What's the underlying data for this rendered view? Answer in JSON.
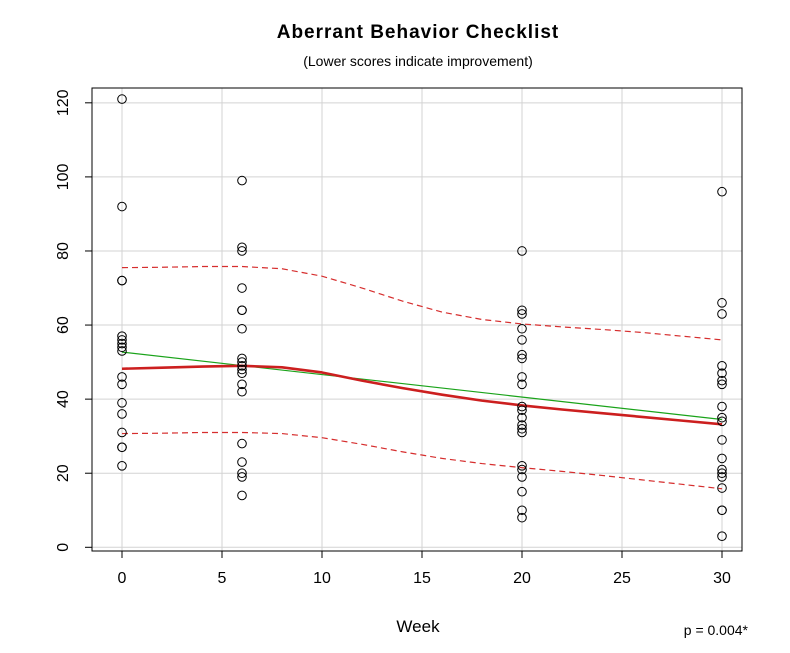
{
  "chart_data": {
    "type": "scatter",
    "title": "Aberrant Behavior Checklist",
    "subtitle": "(Lower scores indicate improvement)",
    "xlabel": "Week",
    "ylabel": "",
    "xlim": [
      -1.5,
      31
    ],
    "ylim": [
      -1,
      124
    ],
    "xticks": [
      0,
      5,
      10,
      15,
      20,
      25,
      30
    ],
    "yticks": [
      0,
      20,
      40,
      60,
      80,
      100,
      120
    ],
    "grid": true,
    "annotation": "p = 0.004*",
    "colors": {
      "points": "#000000",
      "smooth": "#cc1f1f",
      "linear": "#1aa31a",
      "band": "#d62e2e",
      "grid": "#d3d3d3",
      "axis": "#000000"
    },
    "series": [
      {
        "name": "Observed scores",
        "kind": "points",
        "points": [
          {
            "x": 0,
            "y": 121
          },
          {
            "x": 0,
            "y": 92
          },
          {
            "x": 0,
            "y": 72
          },
          {
            "x": 0,
            "y": 72
          },
          {
            "x": 0,
            "y": 57
          },
          {
            "x": 0,
            "y": 56
          },
          {
            "x": 0,
            "y": 55
          },
          {
            "x": 0,
            "y": 54
          },
          {
            "x": 0,
            "y": 53
          },
          {
            "x": 0,
            "y": 46
          },
          {
            "x": 0,
            "y": 44
          },
          {
            "x": 0,
            "y": 39
          },
          {
            "x": 0,
            "y": 36
          },
          {
            "x": 0,
            "y": 31
          },
          {
            "x": 0,
            "y": 27
          },
          {
            "x": 0,
            "y": 27
          },
          {
            "x": 0,
            "y": 22
          },
          {
            "x": 6,
            "y": 99
          },
          {
            "x": 6,
            "y": 81
          },
          {
            "x": 6,
            "y": 80
          },
          {
            "x": 6,
            "y": 70
          },
          {
            "x": 6,
            "y": 64
          },
          {
            "x": 6,
            "y": 64
          },
          {
            "x": 6,
            "y": 59
          },
          {
            "x": 6,
            "y": 51
          },
          {
            "x": 6,
            "y": 50
          },
          {
            "x": 6,
            "y": 49
          },
          {
            "x": 6,
            "y": 48
          },
          {
            "x": 6,
            "y": 47
          },
          {
            "x": 6,
            "y": 44
          },
          {
            "x": 6,
            "y": 42
          },
          {
            "x": 6,
            "y": 28
          },
          {
            "x": 6,
            "y": 23
          },
          {
            "x": 6,
            "y": 20
          },
          {
            "x": 6,
            "y": 19
          },
          {
            "x": 6,
            "y": 14
          },
          {
            "x": 20,
            "y": 80
          },
          {
            "x": 20,
            "y": 64
          },
          {
            "x": 20,
            "y": 63
          },
          {
            "x": 20,
            "y": 59
          },
          {
            "x": 20,
            "y": 56
          },
          {
            "x": 20,
            "y": 52
          },
          {
            "x": 20,
            "y": 51
          },
          {
            "x": 20,
            "y": 46
          },
          {
            "x": 20,
            "y": 44
          },
          {
            "x": 20,
            "y": 38
          },
          {
            "x": 20,
            "y": 37
          },
          {
            "x": 20,
            "y": 35
          },
          {
            "x": 20,
            "y": 33
          },
          {
            "x": 20,
            "y": 32
          },
          {
            "x": 20,
            "y": 31
          },
          {
            "x": 20,
            "y": 22
          },
          {
            "x": 20,
            "y": 21
          },
          {
            "x": 20,
            "y": 19
          },
          {
            "x": 20,
            "y": 15
          },
          {
            "x": 20,
            "y": 10
          },
          {
            "x": 20,
            "y": 8
          },
          {
            "x": 30,
            "y": 96
          },
          {
            "x": 30,
            "y": 66
          },
          {
            "x": 30,
            "y": 63
          },
          {
            "x": 30,
            "y": 49
          },
          {
            "x": 30,
            "y": 47
          },
          {
            "x": 30,
            "y": 45
          },
          {
            "x": 30,
            "y": 44
          },
          {
            "x": 30,
            "y": 38
          },
          {
            "x": 30,
            "y": 35
          },
          {
            "x": 30,
            "y": 34
          },
          {
            "x": 30,
            "y": 29
          },
          {
            "x": 30,
            "y": 24
          },
          {
            "x": 30,
            "y": 21
          },
          {
            "x": 30,
            "y": 20
          },
          {
            "x": 30,
            "y": 19
          },
          {
            "x": 30,
            "y": 16
          },
          {
            "x": 30,
            "y": 10
          },
          {
            "x": 30,
            "y": 10
          },
          {
            "x": 30,
            "y": 3
          }
        ]
      },
      {
        "name": "Smoothed trend",
        "kind": "line",
        "style": "solid-thick",
        "points": [
          {
            "x": 0,
            "y": 48.2
          },
          {
            "x": 2,
            "y": 48.5
          },
          {
            "x": 4,
            "y": 48.8
          },
          {
            "x": 6,
            "y": 49.0
          },
          {
            "x": 8,
            "y": 48.6
          },
          {
            "x": 10,
            "y": 47.2
          },
          {
            "x": 12,
            "y": 45.0
          },
          {
            "x": 14,
            "y": 43.0
          },
          {
            "x": 16,
            "y": 41.2
          },
          {
            "x": 18,
            "y": 39.6
          },
          {
            "x": 20,
            "y": 38.3
          },
          {
            "x": 22,
            "y": 37.2
          },
          {
            "x": 24,
            "y": 36.2
          },
          {
            "x": 26,
            "y": 35.2
          },
          {
            "x": 28,
            "y": 34.2
          },
          {
            "x": 30,
            "y": 33.2
          }
        ]
      },
      {
        "name": "Linear fit",
        "kind": "line",
        "style": "solid-thin",
        "points": [
          {
            "x": 0,
            "y": 52.7
          },
          {
            "x": 30,
            "y": 34.5
          }
        ]
      },
      {
        "name": "Upper band",
        "kind": "line",
        "style": "dashed",
        "points": [
          {
            "x": 0,
            "y": 75.5
          },
          {
            "x": 2,
            "y": 75.6
          },
          {
            "x": 4,
            "y": 75.8
          },
          {
            "x": 6,
            "y": 75.8
          },
          {
            "x": 8,
            "y": 75.2
          },
          {
            "x": 10,
            "y": 73.2
          },
          {
            "x": 12,
            "y": 70.0
          },
          {
            "x": 14,
            "y": 66.5
          },
          {
            "x": 16,
            "y": 63.5
          },
          {
            "x": 18,
            "y": 61.5
          },
          {
            "x": 20,
            "y": 60.3
          },
          {
            "x": 22,
            "y": 59.5
          },
          {
            "x": 24,
            "y": 58.8
          },
          {
            "x": 26,
            "y": 58.0
          },
          {
            "x": 28,
            "y": 57.0
          },
          {
            "x": 30,
            "y": 56.0
          }
        ]
      },
      {
        "name": "Lower band",
        "kind": "line",
        "style": "dashed",
        "points": [
          {
            "x": 0,
            "y": 30.7
          },
          {
            "x": 2,
            "y": 30.8
          },
          {
            "x": 4,
            "y": 31.0
          },
          {
            "x": 6,
            "y": 31.0
          },
          {
            "x": 8,
            "y": 30.7
          },
          {
            "x": 10,
            "y": 29.6
          },
          {
            "x": 12,
            "y": 27.8
          },
          {
            "x": 14,
            "y": 25.8
          },
          {
            "x": 16,
            "y": 24.0
          },
          {
            "x": 18,
            "y": 22.6
          },
          {
            "x": 20,
            "y": 21.5
          },
          {
            "x": 22,
            "y": 20.5
          },
          {
            "x": 24,
            "y": 19.4
          },
          {
            "x": 26,
            "y": 18.2
          },
          {
            "x": 28,
            "y": 17.0
          },
          {
            "x": 30,
            "y": 15.8
          }
        ]
      }
    ]
  }
}
